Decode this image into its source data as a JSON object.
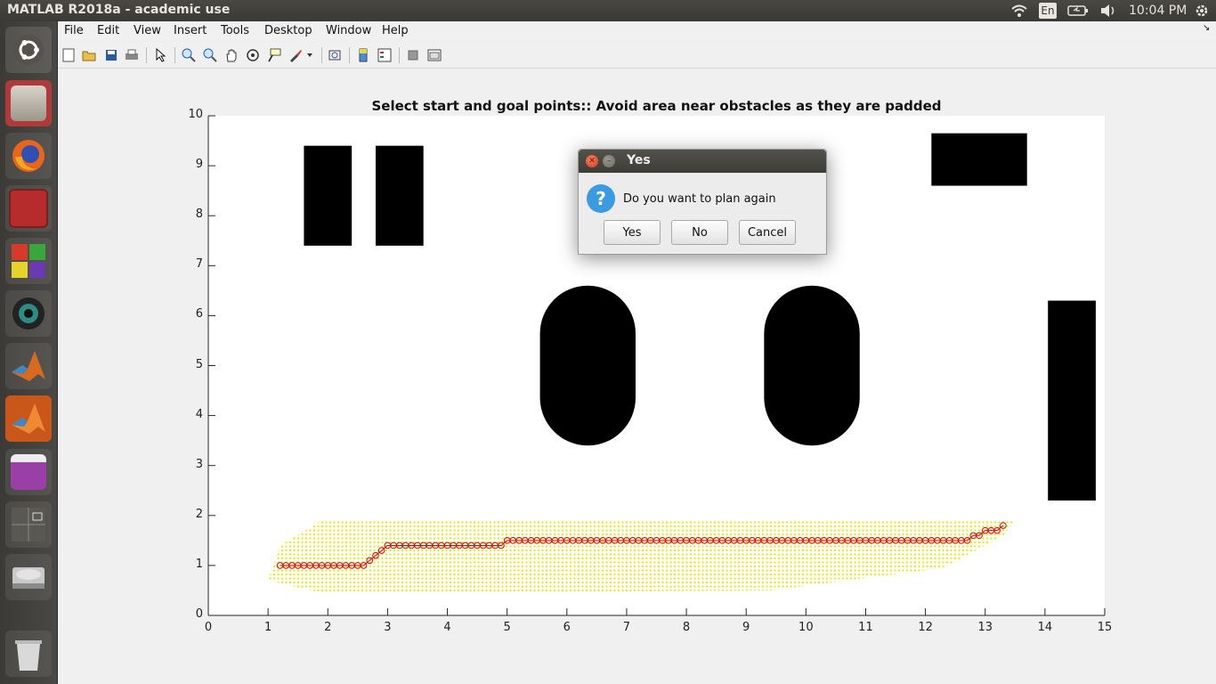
{
  "window": {
    "title": "MATLAB R2018a - academic use"
  },
  "tray": {
    "keyboard": "En",
    "time": "10:04 PM"
  },
  "menus": [
    "File",
    "Edit",
    "View",
    "Insert",
    "Tools",
    "Desktop",
    "Window",
    "Help"
  ],
  "launcher": [
    "ubuntu-logo-icon",
    "file-cabinet-icon",
    "firefox-icon",
    "terminal-icon",
    "software-cube-icon",
    "webcam-icon",
    "matlab-icon",
    "matlab-icon",
    "window-icon",
    "workspace-switcher-icon",
    "disk-icon",
    "trash-icon"
  ],
  "plot": {
    "title": "Select start and goal points:: Avoid area near obstacles as they are padded"
  },
  "chart_data": {
    "type": "scatter",
    "title": "Select start and goal points:: Avoid area near obstacles as they are padded",
    "xlabel": "",
    "ylabel": "",
    "xlim": [
      0,
      15
    ],
    "ylim": [
      0,
      10
    ],
    "xticks": [
      0,
      1,
      2,
      3,
      4,
      5,
      6,
      7,
      8,
      9,
      10,
      11,
      12,
      13,
      14,
      15
    ],
    "yticks": [
      0,
      1,
      2,
      3,
      4,
      5,
      6,
      7,
      8,
      9,
      10
    ],
    "obstacles": [
      {
        "shape": "rect",
        "x": [
          1.6,
          2.4
        ],
        "y": [
          7.4,
          9.4
        ]
      },
      {
        "shape": "rect",
        "x": [
          2.8,
          3.6
        ],
        "y": [
          7.4,
          9.4
        ]
      },
      {
        "shape": "rect",
        "x": [
          12.1,
          13.7
        ],
        "y": [
          8.6,
          9.65
        ]
      },
      {
        "shape": "rect",
        "x": [
          14.05,
          14.85
        ],
        "y": [
          2.3,
          6.3
        ]
      },
      {
        "shape": "stadium",
        "x": [
          5.55,
          7.15
        ],
        "y": [
          3.4,
          6.6
        ]
      },
      {
        "shape": "stadium",
        "x": [
          9.3,
          10.9
        ],
        "y": [
          3.4,
          6.6
        ]
      }
    ],
    "explored_region": [
      [
        1.0,
        0.7
      ],
      [
        1.2,
        1.4
      ],
      [
        1.9,
        1.9
      ],
      [
        13.5,
        1.9
      ],
      [
        13.3,
        1.6
      ],
      [
        12.3,
        0.95
      ],
      [
        9.4,
        0.5
      ],
      [
        1.9,
        0.45
      ]
    ],
    "path": {
      "color": "#e00000",
      "x": [
        1.2,
        1.3,
        1.4,
        1.5,
        1.6,
        1.7,
        1.8,
        1.9,
        2.0,
        2.1,
        2.2,
        2.3,
        2.4,
        2.5,
        2.6,
        2.7,
        2.8,
        2.9,
        3.0,
        3.1,
        3.2,
        3.3,
        3.4,
        3.5,
        3.6,
        3.7,
        3.8,
        3.9,
        4.0,
        4.1,
        4.2,
        4.3,
        4.4,
        4.5,
        4.6,
        4.7,
        4.8,
        4.9,
        5.0,
        5.1,
        5.2,
        5.3,
        5.4,
        5.5,
        5.6,
        5.7,
        5.8,
        5.9,
        6.0,
        6.1,
        6.2,
        6.3,
        6.4,
        6.5,
        6.6,
        6.7,
        6.8,
        6.9,
        7.0,
        7.1,
        7.2,
        7.3,
        7.4,
        7.5,
        7.6,
        7.7,
        7.8,
        7.9,
        8.0,
        8.1,
        8.2,
        8.3,
        8.4,
        8.5,
        8.6,
        8.7,
        8.8,
        8.9,
        9.0,
        9.1,
        9.2,
        9.3,
        9.4,
        9.5,
        9.6,
        9.7,
        9.8,
        9.9,
        10.0,
        10.1,
        10.2,
        10.3,
        10.4,
        10.5,
        10.6,
        10.7,
        10.8,
        10.9,
        11.0,
        11.1,
        11.2,
        11.3,
        11.4,
        11.5,
        11.6,
        11.7,
        11.8,
        11.9,
        12.0,
        12.1,
        12.2,
        12.3,
        12.4,
        12.5,
        12.6,
        12.7,
        12.8,
        12.9,
        13.0,
        13.1,
        13.2,
        13.3
      ],
      "y": [
        1.0,
        1.0,
        1.0,
        1.0,
        1.0,
        1.0,
        1.0,
        1.0,
        1.0,
        1.0,
        1.0,
        1.0,
        1.0,
        1.0,
        1.0,
        1.1,
        1.2,
        1.3,
        1.4,
        1.4,
        1.4,
        1.4,
        1.4,
        1.4,
        1.4,
        1.4,
        1.4,
        1.4,
        1.4,
        1.4,
        1.4,
        1.4,
        1.4,
        1.4,
        1.4,
        1.4,
        1.4,
        1.4,
        1.5,
        1.5,
        1.5,
        1.5,
        1.5,
        1.5,
        1.5,
        1.5,
        1.5,
        1.5,
        1.5,
        1.5,
        1.5,
        1.5,
        1.5,
        1.5,
        1.5,
        1.5,
        1.5,
        1.5,
        1.5,
        1.5,
        1.5,
        1.5,
        1.5,
        1.5,
        1.5,
        1.5,
        1.5,
        1.5,
        1.5,
        1.5,
        1.5,
        1.5,
        1.5,
        1.5,
        1.5,
        1.5,
        1.5,
        1.5,
        1.5,
        1.5,
        1.5,
        1.5,
        1.5,
        1.5,
        1.5,
        1.5,
        1.5,
        1.5,
        1.5,
        1.5,
        1.5,
        1.5,
        1.5,
        1.5,
        1.5,
        1.5,
        1.5,
        1.5,
        1.5,
        1.5,
        1.5,
        1.5,
        1.5,
        1.5,
        1.5,
        1.5,
        1.5,
        1.5,
        1.5,
        1.5,
        1.5,
        1.5,
        1.5,
        1.5,
        1.5,
        1.5,
        1.6,
        1.6,
        1.7,
        1.7,
        1.7,
        1.8
      ]
    },
    "explored_color": "#e8e800"
  },
  "dialog": {
    "title": "Yes",
    "message": "Do you want to plan again",
    "buttons": {
      "yes": "Yes",
      "no": "No",
      "cancel": "Cancel"
    }
  }
}
